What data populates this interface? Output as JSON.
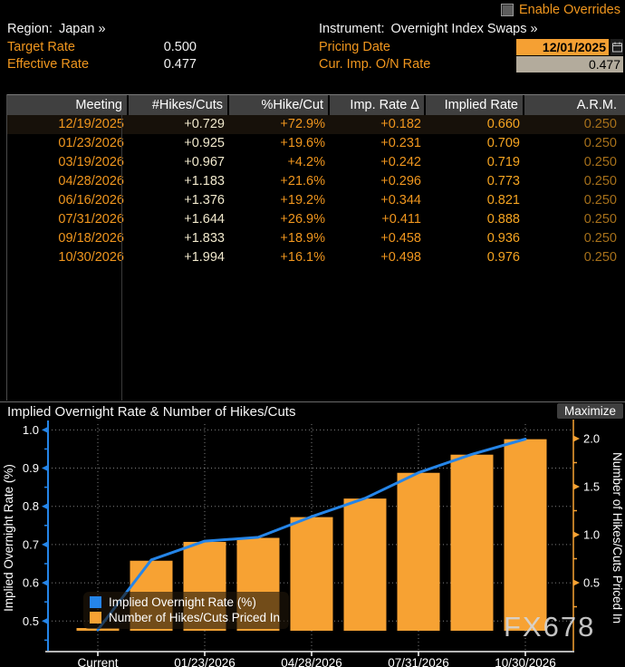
{
  "header": {
    "enable_overrides": "Enable Overrides",
    "region_label": "Region:",
    "region_value": "Japan »",
    "instrument_label": "Instrument:",
    "instrument_value": "Overnight Index Swaps »",
    "target_rate_label": "Target Rate",
    "target_rate_value": "0.500",
    "effective_rate_label": "Effective Rate",
    "effective_rate_value": "0.477",
    "pricing_date_label": "Pricing Date",
    "pricing_date_value": "12/01/2025",
    "cur_imp_label": "Cur. Imp. O/N Rate",
    "cur_imp_value": "0.477"
  },
  "table": {
    "columns": [
      "Meeting",
      "#Hikes/Cuts",
      "%Hike/Cut",
      "Imp. Rate Δ",
      "Implied Rate",
      "A.R.M."
    ],
    "rows": [
      [
        "12/19/2025",
        "+0.729",
        "+72.9%",
        "+0.182",
        "0.660",
        "0.250"
      ],
      [
        "01/23/2026",
        "+0.925",
        "+19.6%",
        "+0.231",
        "0.709",
        "0.250"
      ],
      [
        "03/19/2026",
        "+0.967",
        "+4.2%",
        "+0.242",
        "0.719",
        "0.250"
      ],
      [
        "04/28/2026",
        "+1.183",
        "+21.6%",
        "+0.296",
        "0.773",
        "0.250"
      ],
      [
        "06/16/2026",
        "+1.376",
        "+19.2%",
        "+0.344",
        "0.821",
        "0.250"
      ],
      [
        "07/31/2026",
        "+1.644",
        "+26.9%",
        "+0.411",
        "0.888",
        "0.250"
      ],
      [
        "09/18/2026",
        "+1.833",
        "+18.9%",
        "+0.458",
        "0.936",
        "0.250"
      ],
      [
        "10/30/2026",
        "+1.994",
        "+16.1%",
        "+0.498",
        "0.976",
        "0.250"
      ]
    ]
  },
  "chart": {
    "title": "Implied Overnight Rate & Number of Hikes/Cuts",
    "maximize_label": "Maximize",
    "watermark": "FX678"
  },
  "chart_data": {
    "type": "bar",
    "categories": [
      "Current",
      "12/19/2025",
      "01/23/2026",
      "03/19/2026",
      "04/28/2026",
      "06/16/2026",
      "07/31/2026",
      "09/18/2026",
      "10/30/2026"
    ],
    "x_tick_indices": [
      0,
      2,
      4,
      6,
      8
    ],
    "series": [
      {
        "name": "Implied Overnight Rate (%)",
        "type": "line",
        "axis": "left",
        "color": "#2585e8",
        "values": [
          0.477,
          0.66,
          0.709,
          0.719,
          0.773,
          0.821,
          0.888,
          0.936,
          0.976
        ]
      },
      {
        "name": "Number of Hikes/Cuts Priced In",
        "type": "bar",
        "axis": "right",
        "color": "#f7a233",
        "values": [
          0,
          0.729,
          0.925,
          0.967,
          1.183,
          1.376,
          1.644,
          1.833,
          1.994
        ]
      }
    ],
    "left_axis": {
      "label": "Implied Overnight Rate (%)",
      "ticks": [
        0.5,
        0.6,
        0.7,
        0.8,
        0.9,
        1.0
      ],
      "min": 0.42,
      "max": 1.015
    },
    "right_axis": {
      "label": "Number of Hikes/Cuts Priced In",
      "ticks": [
        0.5,
        1.0,
        1.5,
        2.0
      ],
      "min": -0.217,
      "max": 2.151
    },
    "grid": true,
    "legend_position": "bottom-left"
  },
  "colors": {
    "background": "#000000",
    "amber_label": "#f0961e",
    "cream_value": "#f0e8cc",
    "dim_amber": "#a6701a",
    "line_blue": "#2585e8",
    "bar_orange": "#f7a233",
    "date_input_bg": "#f5a033",
    "rate_input_bg": "#b3ab9c",
    "header_row_bg": "#404040",
    "axis_gray": "#b5b5b5"
  }
}
